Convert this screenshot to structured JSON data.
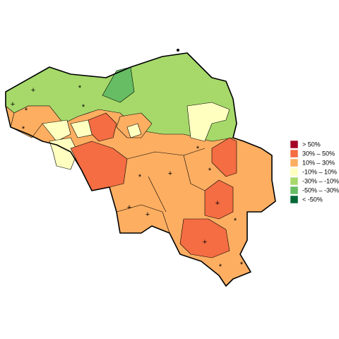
{
  "legend": {
    "items": [
      {
        "label": "> 50%",
        "color": "#a50026"
      },
      {
        "label": "30%  –  50%",
        "color": "#f46d43"
      },
      {
        "label": "10%  –  30%",
        "color": "#fdae61"
      },
      {
        "label": "-10%  –  10%",
        "color": "#ffffbf"
      },
      {
        "label": "-30%  –  -10%",
        "color": "#a6d96a"
      },
      {
        "label": "-50%  –  -30%",
        "color": "#66bd63"
      },
      {
        "label": "< -50%",
        "color": "#006837"
      }
    ]
  },
  "markers": [
    "+",
    "+",
    "*",
    "*",
    "*",
    "*",
    "*",
    "+",
    "*",
    "*",
    "+",
    "*",
    "+",
    "*",
    "*",
    "+",
    "+"
  ]
}
